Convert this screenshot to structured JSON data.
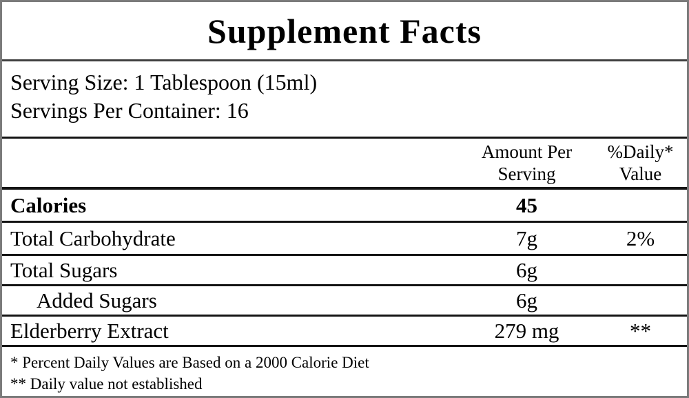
{
  "label": {
    "title": "Supplement Facts",
    "serving_info": {
      "serving_size": "Serving Size: 1 Tablespoon (15ml)",
      "servings_per_container": "Servings Per Container: 16"
    },
    "columns": {
      "amount_per_serving": [
        "Amount Per",
        "Serving"
      ],
      "percent_daily_value": [
        "%Daily*",
        "Value"
      ]
    },
    "rows": [
      {
        "name": "Calories",
        "amount": "45",
        "daily_value": ""
      },
      {
        "name": "Total Carbohydrate",
        "amount": "7g",
        "daily_value": "2%"
      },
      {
        "name": "Total Sugars",
        "amount": "6g",
        "daily_value": ""
      },
      {
        "name": "Added Sugars",
        "amount": "6g",
        "daily_value": ""
      },
      {
        "name": "Elderberry Extract",
        "amount": "279 mg",
        "daily_value": "**"
      }
    ],
    "footnotes": [
      "* Percent Daily Values are Based on a 2000 Calorie Diet",
      "** Daily value not established"
    ],
    "colors": {
      "background": "#ffffff",
      "text": "#000000",
      "outer_border": "#7b7b7b",
      "rule": "#141414"
    }
  }
}
